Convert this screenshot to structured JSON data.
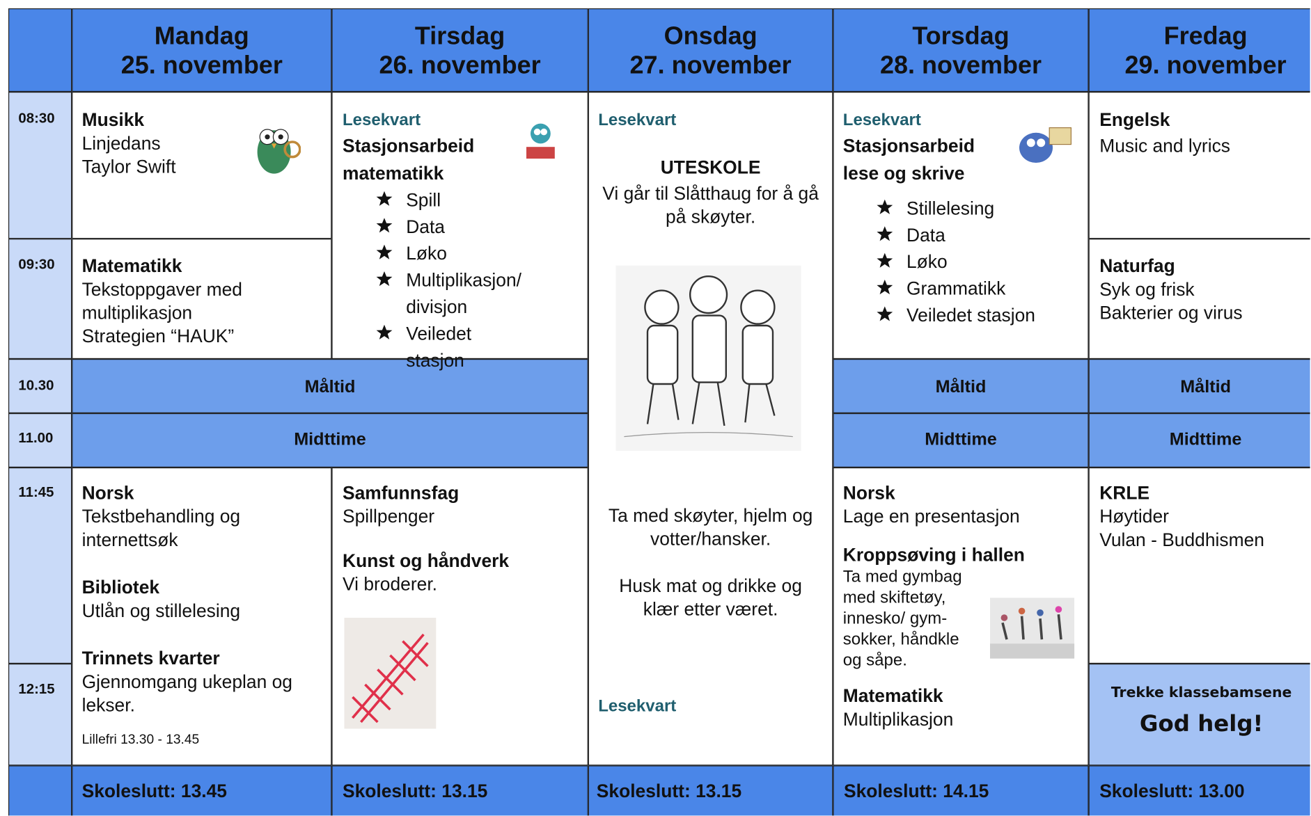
{
  "days": [
    {
      "name": "Mandag",
      "date": "25. november"
    },
    {
      "name": "Tirsdag",
      "date": "26. november"
    },
    {
      "name": "Onsdag",
      "date": "27. november"
    },
    {
      "name": "Torsdag",
      "date": "28. november"
    },
    {
      "name": "Fredag",
      "date": "29. november"
    }
  ],
  "times": [
    "08:30",
    "09:30",
    "10.30",
    "11.00",
    "11:45",
    "12:15"
  ],
  "bands": {
    "meal": "Måltid",
    "midday": "Midttime"
  },
  "mon": {
    "s1": {
      "subject": "Musikk",
      "lines": [
        "Linjedans",
        "Taylor Swift"
      ]
    },
    "s2": {
      "subject": "Matematikk",
      "lines": [
        "Tekstoppgaver med",
        "multiplikasjon",
        "Strategien “HAUK”"
      ]
    },
    "s3": [
      {
        "subject": "Norsk",
        "lines": [
          "Tekstbehandling og",
          "internettsøk"
        ]
      },
      {
        "subject": "Bibliotek",
        "lines": [
          "Utlån og stillelesing"
        ]
      },
      {
        "subject": "Trinnets kvarter",
        "lines": [
          "Gjennomgang ukeplan og",
          "lekser."
        ]
      }
    ],
    "note": "Lillefri 13.30 - 13.45"
  },
  "tue": {
    "lesekvart": "Lesekvart",
    "subject": [
      "Stasjonsarbeid",
      "matematikk"
    ],
    "stations": [
      "Spill",
      "Data",
      "Løko",
      "Multiplikasjon/ divisjon",
      "Veiledet stasjon"
    ],
    "s3": [
      {
        "subject": "Samfunnsfag",
        "lines": [
          "Spillpenger"
        ]
      },
      {
        "subject": "Kunst og håndverk",
        "lines": [
          "Vi broderer."
        ]
      }
    ]
  },
  "wed": {
    "lesekvart": "Lesekvart",
    "title": "UTESKOLE",
    "text": "Vi går til Slåtthaug for å gå på skøyter.",
    "bring": "Ta med skøyter, hjelm og votter/hansker.",
    "food": "Husk mat og drikke og klær etter været.",
    "lesekvart2": "Lesekvart"
  },
  "thu": {
    "lesekvart": "Lesekvart",
    "subject": [
      "Stasjonsarbeid",
      "lese og skrive"
    ],
    "stations": [
      "Stillelesing",
      "Data",
      "Løko",
      "Grammatikk",
      "Veiledet stasjon"
    ],
    "s3": [
      {
        "subject": "Norsk",
        "lines": [
          "Lage en presentasjon"
        ]
      },
      {
        "subject": "Kroppsøving i hallen",
        "lines": [
          "Ta med gymbag med skiftetøy, innesko/ gym-sokker, håndkle og såpe."
        ]
      },
      {
        "subject": "Matematikk",
        "lines": [
          "Multiplikasjon"
        ]
      }
    ]
  },
  "fri": {
    "s1": {
      "subject": "Engelsk",
      "lines": [
        "Music and lyrics"
      ]
    },
    "s2": {
      "subject": "Naturfag",
      "lines": [
        "Syk og frisk",
        "Bakterier og virus"
      ]
    },
    "s3": {
      "subject": "KRLE",
      "lines": [
        "Høytider",
        "Vulan - Buddhismen"
      ]
    },
    "bear": "Trekke klassebamsene",
    "weekend": "God helg!"
  },
  "footer": [
    "Skoleslutt: 13.45",
    "Skoleslutt: 13.15",
    "Skoleslutt: 13.15",
    "Skoleslutt: 14.15",
    "Skoleslutt: 13.00"
  ]
}
